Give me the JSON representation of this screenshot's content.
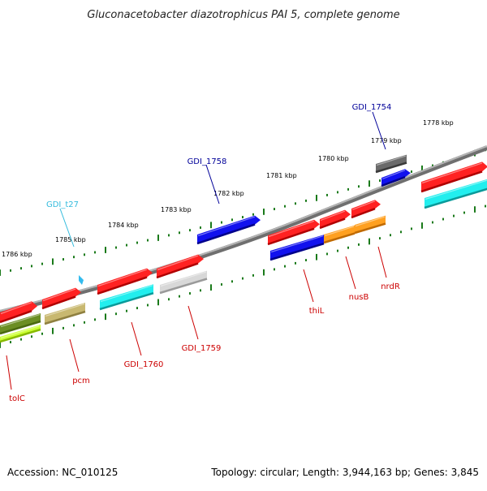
{
  "title": "Gluconacetobacter diazotrophicus PAI 5, complete genome",
  "footer": {
    "accession": "Accession: NC_010125",
    "summary": "Topology: circular; Length: 3,944,163 bp; Genes: 3,845"
  },
  "colors": {
    "backbone": "#8a8a8a",
    "tick": "#1a7a1a",
    "label_red": "#cc0000",
    "label_blue": "#000099",
    "label_cyan": "#33bbdd"
  },
  "kbp_labels": [
    {
      "text": "1786 kbp"
    },
    {
      "text": "1785 kbp"
    },
    {
      "text": "1784 kbp"
    },
    {
      "text": "1783 kbp"
    },
    {
      "text": "1782 kbp"
    },
    {
      "text": "1781 kbp"
    },
    {
      "text": "1780 kbp"
    },
    {
      "text": "1779 kbp"
    },
    {
      "text": "1778 kbp"
    }
  ],
  "gene_labels": [
    {
      "text": "tolC",
      "color": "red"
    },
    {
      "text": "pcm",
      "color": "red"
    },
    {
      "text": "GDI_1760",
      "color": "red"
    },
    {
      "text": "GDI_1759",
      "color": "red"
    },
    {
      "text": "thiL",
      "color": "red"
    },
    {
      "text": "nusB",
      "color": "red"
    },
    {
      "text": "nrdR",
      "color": "red"
    },
    {
      "text": "GDI_t27",
      "color": "cyan"
    },
    {
      "text": "GDI_1758",
      "color": "blue"
    },
    {
      "text": "GDI_1754",
      "color": "blue"
    }
  ],
  "feature_colors": [
    "red",
    "olive",
    "lime",
    "khaki",
    "cyan",
    "gray",
    "lightgray",
    "blue",
    "orange",
    "darkgray"
  ]
}
